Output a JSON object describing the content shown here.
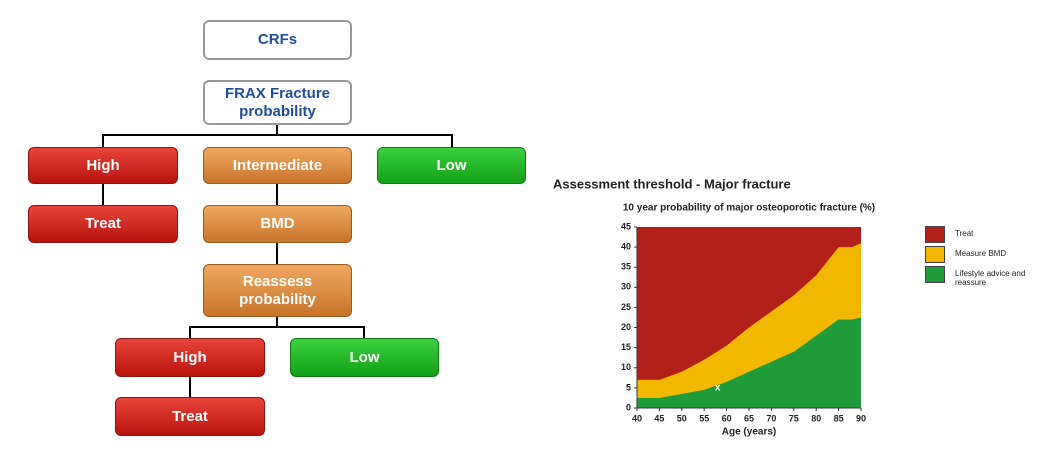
{
  "flowchart": {
    "nodes": [
      {
        "label": "CRFs"
      },
      {
        "label": "FRAX Fracture probability"
      },
      {
        "label": "High"
      },
      {
        "label": "Intermediate"
      },
      {
        "label": "Low"
      },
      {
        "label": "Treat"
      },
      {
        "label": "BMD"
      },
      {
        "label": "Reassess probability"
      },
      {
        "label": "High"
      },
      {
        "label": "Low"
      },
      {
        "label": "Treat"
      }
    ]
  },
  "chart_data": {
    "type": "area",
    "title": "Assessment threshold - Major fracture",
    "subtitle": "10 year probability of major osteoporotic fracture (%)",
    "x_label": "Age (years)",
    "x": [
      40,
      45,
      50,
      55,
      60,
      65,
      70,
      75,
      80,
      85,
      88,
      90
    ],
    "series": [
      {
        "name": "Treat",
        "color": "#b3201c"
      },
      {
        "name": "Measure BMD",
        "color": "#f2b800",
        "values": [
          7,
          7,
          9,
          12,
          15.5,
          20,
          24,
          28,
          33,
          40,
          40,
          41
        ]
      },
      {
        "name": "Lifestyle advice and reassure",
        "color": "#1e9c3c",
        "values": [
          2.5,
          2.5,
          3.5,
          4.5,
          6.5,
          9,
          11.5,
          14,
          18,
          22,
          22,
          22.5
        ]
      }
    ],
    "point": {
      "x": 58,
      "y": 5,
      "label": "x"
    },
    "xlim": [
      40,
      90
    ],
    "ylim": [
      0,
      45
    ],
    "xticks": [
      40,
      45,
      50,
      55,
      60,
      65,
      70,
      75,
      80,
      85,
      90
    ],
    "yticks": [
      0,
      5,
      10,
      15,
      20,
      25,
      30,
      35,
      40,
      45
    ]
  }
}
